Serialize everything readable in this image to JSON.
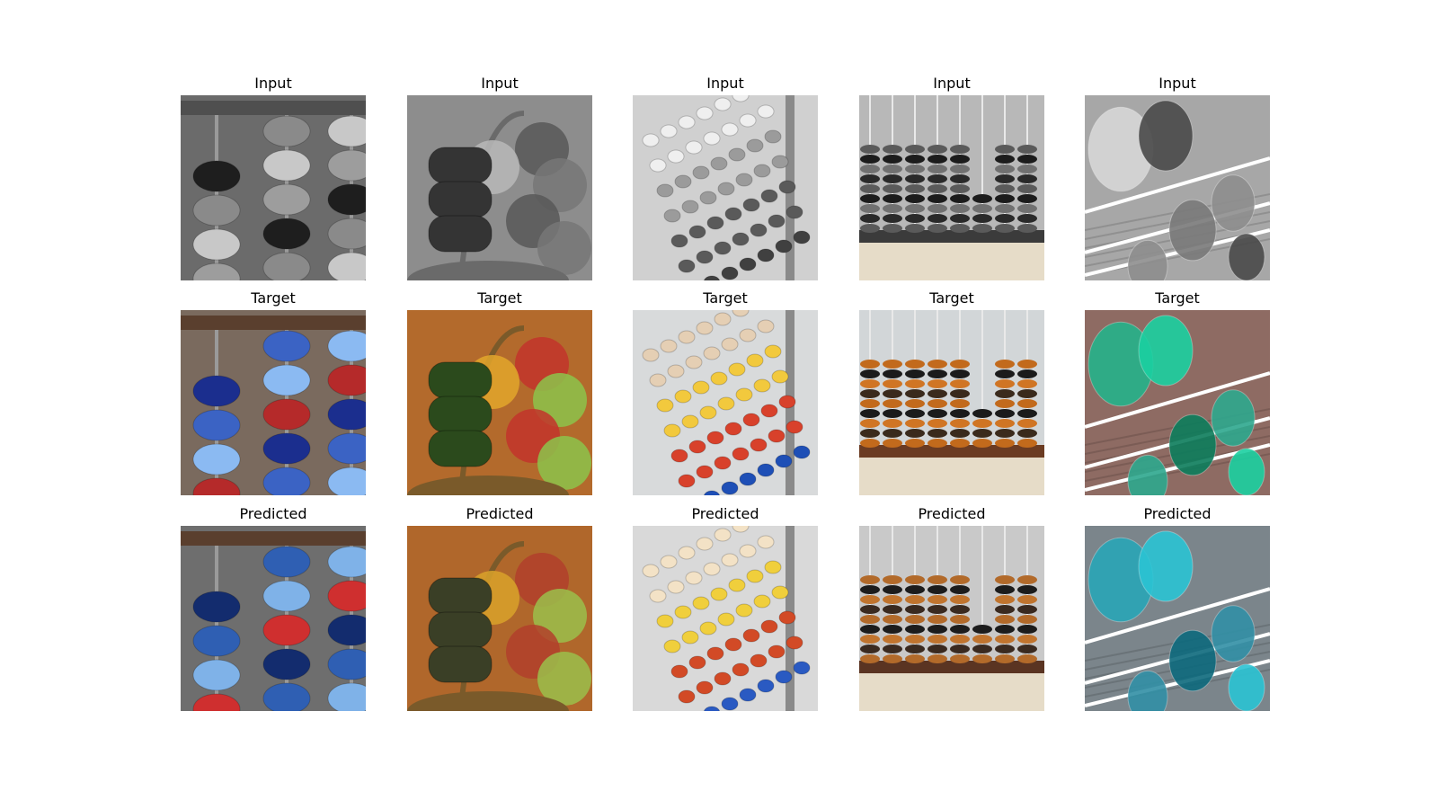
{
  "row_titles": [
    "Input",
    "Target",
    "Predicted"
  ],
  "columns": [
    {
      "scene": "scene-1",
      "input": {
        "bg": "#6b6b6b",
        "rail": "#4f4f4f",
        "beads": [
          {
            "color": "#1e1e1e"
          },
          {
            "color": "#8a8a8a"
          },
          {
            "color": "#c8c8c8"
          },
          {
            "color": "#9d9d9d"
          }
        ]
      },
      "target": {
        "bg": "#7a6a5e",
        "rail": "#5a3f2e",
        "beads": [
          {
            "color": "#1b2e8e"
          },
          {
            "color": "#3b63c4"
          },
          {
            "color": "#8bbaf2"
          },
          {
            "color": "#b52a2a"
          }
        ]
      },
      "predicted": {
        "bg": "#6e6e6e",
        "rail": "#5a3f2e",
        "beads": [
          {
            "color": "#132c6e"
          },
          {
            "color": "#2f5fb3"
          },
          {
            "color": "#7fb2e8"
          },
          {
            "color": "#cf2f2f"
          }
        ]
      }
    },
    {
      "scene": "scene-2",
      "input": {
        "bg": "#8d8d8d",
        "rail": "#6a6a6a",
        "beads": [
          {
            "color": "#343434"
          },
          {
            "color": "#b9b9b9"
          },
          {
            "color": "#585858"
          },
          {
            "color": "#777777"
          }
        ]
      },
      "target": {
        "bg": "#b36a2c",
        "rail": "#7a5a2a",
        "beads": [
          {
            "color": "#2b4a1c"
          },
          {
            "color": "#e2a62b"
          },
          {
            "color": "#c2342c"
          },
          {
            "color": "#8cc34b"
          }
        ]
      },
      "predicted": {
        "bg": "#b0672b",
        "rail": "#7a5a2a",
        "beads": [
          {
            "color": "#3a3f26"
          },
          {
            "color": "#d9a22a"
          },
          {
            "color": "#b2402b"
          },
          {
            "color": "#9bbf4b"
          }
        ]
      }
    },
    {
      "scene": "scene-3",
      "input": {
        "bg": "#d0d0d0",
        "rail": "#8a8a8a",
        "beads": [
          {
            "color": "#efefef"
          },
          {
            "color": "#9b9b9b"
          },
          {
            "color": "#5a5a5a"
          },
          {
            "color": "#404040"
          }
        ]
      },
      "target": {
        "bg": "#d8dadb",
        "rail": "#8a8a8a",
        "beads": [
          {
            "color": "#e5cfb4"
          },
          {
            "color": "#f2c93d"
          },
          {
            "color": "#d8412b"
          },
          {
            "color": "#1e4fb6"
          }
        ]
      },
      "predicted": {
        "bg": "#d9d9d9",
        "rail": "#8a8a8a",
        "beads": [
          {
            "color": "#f3e2c6"
          },
          {
            "color": "#f0cf3c"
          },
          {
            "color": "#d24a26"
          },
          {
            "color": "#2a5ac2"
          }
        ]
      }
    },
    {
      "scene": "scene-4",
      "input": {
        "bg": "#b8b8b8",
        "rail": "#3b3b3b",
        "beads": [
          {
            "color": "#5a5a5a"
          },
          {
            "color": "#1c1c1c"
          },
          {
            "color": "#707070"
          },
          {
            "color": "#2a2a2a"
          }
        ]
      },
      "target": {
        "bg": "#d2d6d8",
        "rail": "#6b3b22",
        "beads": [
          {
            "color": "#c26a1c"
          },
          {
            "color": "#1b1b1b"
          },
          {
            "color": "#d07524"
          },
          {
            "color": "#3a2a1c"
          }
        ]
      },
      "predicted": {
        "bg": "#c9c9c9",
        "rail": "#5a3422",
        "beads": [
          {
            "color": "#b26a2a"
          },
          {
            "color": "#1c1c1c"
          },
          {
            "color": "#c0742e"
          },
          {
            "color": "#3a2a20"
          }
        ]
      }
    },
    {
      "scene": "scene-5",
      "input": {
        "bg": "#a7a7a7",
        "rail": "#ffffff",
        "beads": [
          {
            "color": "#d7d7d7"
          },
          {
            "color": "#7a7a7a"
          },
          {
            "color": "#4a4a4a"
          },
          {
            "color": "#8e8e8e"
          }
        ]
      },
      "target": {
        "bg": "#8e6b63",
        "rail": "#ffffff",
        "beads": [
          {
            "color": "#25b38a"
          },
          {
            "color": "#0d7d5c"
          },
          {
            "color": "#1bd0a1"
          },
          {
            "color": "#2ea88e"
          }
        ]
      },
      "predicted": {
        "bg": "#7b858b",
        "rail": "#ffffff",
        "beads": [
          {
            "color": "#2aa6b7"
          },
          {
            "color": "#0e6a7d"
          },
          {
            "color": "#2bc4d4"
          },
          {
            "color": "#3290a6"
          }
        ]
      }
    }
  ]
}
